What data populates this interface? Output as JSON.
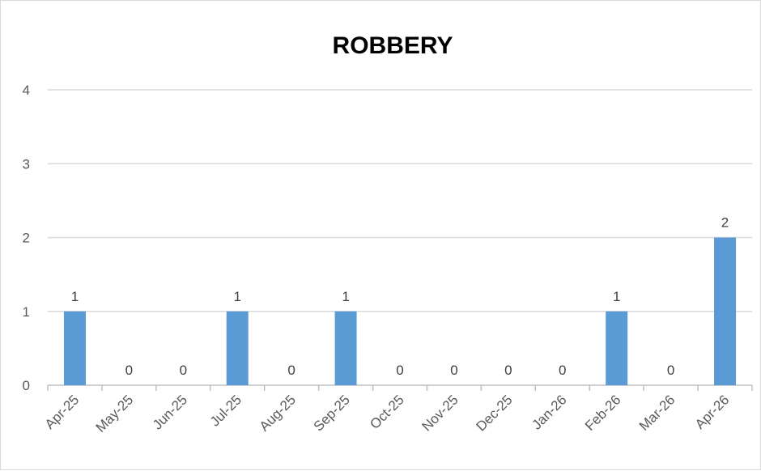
{
  "chart_data": {
    "type": "bar",
    "title": "ROBBERY",
    "xlabel": "",
    "ylabel": "",
    "categories": [
      "Apr-25",
      "May-25",
      "Jun-25",
      "Jul-25",
      "Aug-25",
      "Sep-25",
      "Oct-25",
      "Nov-25",
      "Dec-25",
      "Jan-26",
      "Feb-26",
      "Mar-26",
      "Apr-26"
    ],
    "values": [
      1,
      0,
      0,
      1,
      0,
      1,
      0,
      0,
      0,
      0,
      1,
      0,
      2
    ],
    "data_labels": [
      "1",
      "0",
      "0",
      "1",
      "0",
      "1",
      "0",
      "0",
      "0",
      "0",
      "1",
      "0",
      "2"
    ],
    "ylim": [
      0,
      4
    ],
    "yticks": [
      "0",
      "1",
      "2",
      "3",
      "4"
    ],
    "grid": true,
    "legend": "none",
    "colors": {
      "bar": "#5b9bd5",
      "grid": "#d9d9d9",
      "axis": "#bfbfbf"
    }
  }
}
